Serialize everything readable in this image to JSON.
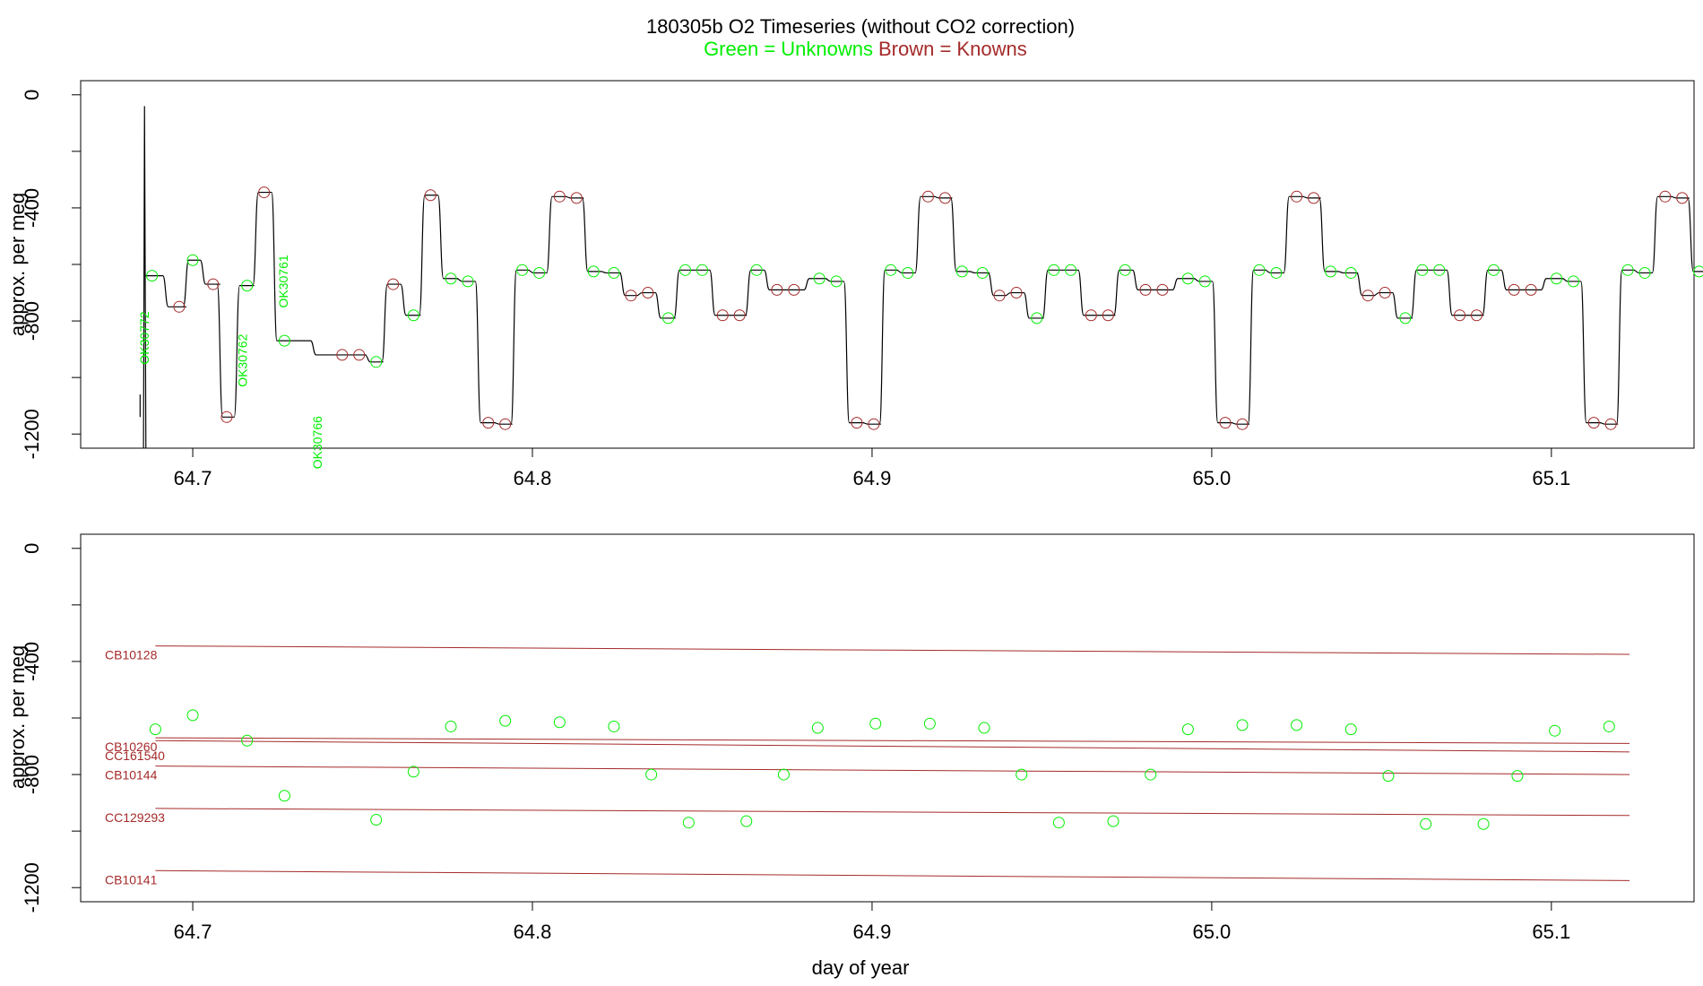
{
  "chart_data": [
    {
      "type": "line",
      "title": "180305b   O2 Timeseries (without CO2 correction)",
      "subtitle_unknowns": "Green = Unknowns",
      "subtitle_knowns": "Brown = Knowns",
      "xlabel": "",
      "ylabel": "approx. per meg",
      "xlim": [
        64.667,
        65.142
      ],
      "ylim": [
        -1250,
        50
      ],
      "xticks": [
        64.7,
        64.8,
        64.9,
        65.0,
        65.1
      ],
      "xtick_labels": [
        "64.7",
        "64.8",
        "64.9",
        "65.0",
        "65.1"
      ],
      "yticks": [
        0,
        -400,
        -800,
        -1200
      ],
      "ytick_labels": [
        "0",
        "-400",
        "-800",
        "-1200"
      ],
      "colors": {
        "unknown": "#00ee00",
        "known": "#a52a2a",
        "trace": "#000000"
      },
      "cycle": {
        "period": 0.1085,
        "levels": [
          {
            "dt": 0.0,
            "y": -650,
            "type": "unknown"
          },
          {
            "dt": 0.005,
            "y": -660,
            "type": "unknown"
          },
          {
            "dt": 0.011,
            "y": -1160,
            "type": "known"
          },
          {
            "dt": 0.016,
            "y": -1165,
            "type": "known"
          },
          {
            "dt": 0.021,
            "y": -620,
            "type": "unknown"
          },
          {
            "dt": 0.026,
            "y": -630,
            "type": "unknown"
          },
          {
            "dt": 0.032,
            "y": -360,
            "type": "known"
          },
          {
            "dt": 0.037,
            "y": -365,
            "type": "known"
          },
          {
            "dt": 0.042,
            "y": -625,
            "type": "unknown"
          },
          {
            "dt": 0.048,
            "y": -630,
            "type": "unknown"
          },
          {
            "dt": 0.053,
            "y": -710,
            "type": "known"
          },
          {
            "dt": 0.058,
            "y": -700,
            "type": "known"
          },
          {
            "dt": 0.064,
            "y": -790,
            "type": "unknown"
          },
          {
            "dt": 0.069,
            "y": -620,
            "type": "unknown"
          },
          {
            "dt": 0.074,
            "y": -620,
            "type": "unknown"
          },
          {
            "dt": 0.08,
            "y": -780,
            "type": "known"
          },
          {
            "dt": 0.085,
            "y": -780,
            "type": "known"
          },
          {
            "dt": 0.09,
            "y": -620,
            "type": "unknown"
          },
          {
            "dt": 0.096,
            "y": -690,
            "type": "known"
          },
          {
            "dt": 0.101,
            "y": -690,
            "type": "known"
          }
        ],
        "first_start": 64.776,
        "count": 4
      },
      "startup_unknown_labels": [
        {
          "text": "OK30772",
          "x": 64.687,
          "y": -860
        },
        {
          "text": "OK30762",
          "x": 64.716,
          "y": -940
        },
        {
          "text": "OK30761",
          "x": 64.728,
          "y": -660
        },
        {
          "text": "OK30766",
          "x": 64.738,
          "y": -1230
        }
      ],
      "startup_points": [
        {
          "x": 64.688,
          "y": -640,
          "type": "unknown"
        },
        {
          "x": 64.696,
          "y": -750,
          "type": "known"
        },
        {
          "x": 64.7,
          "y": -585,
          "type": "unknown"
        },
        {
          "x": 64.706,
          "y": -670,
          "type": "known"
        },
        {
          "x": 64.71,
          "y": -1140,
          "type": "known"
        },
        {
          "x": 64.716,
          "y": -675,
          "type": "unknown"
        },
        {
          "x": 64.721,
          "y": -345,
          "type": "known"
        },
        {
          "x": 64.727,
          "y": -870,
          "type": "unknown"
        },
        {
          "x": 64.744,
          "y": -920,
          "type": "known"
        },
        {
          "x": 64.749,
          "y": -920,
          "type": "known"
        },
        {
          "x": 64.754,
          "y": -945,
          "type": "unknown"
        },
        {
          "x": 64.759,
          "y": -670,
          "type": "known"
        },
        {
          "x": 64.765,
          "y": -780,
          "type": "unknown"
        },
        {
          "x": 64.77,
          "y": -355,
          "type": "known"
        }
      ]
    },
    {
      "type": "scatter",
      "xlabel": "day of year",
      "ylabel": "approx. per meg",
      "xlim": [
        64.667,
        65.142
      ],
      "ylim": [
        -1250,
        50
      ],
      "xticks": [
        64.7,
        64.8,
        64.9,
        65.0,
        65.1
      ],
      "xtick_labels": [
        "64.7",
        "64.8",
        "64.9",
        "65.0",
        "65.1"
      ],
      "yticks": [
        0,
        -400,
        -800,
        -1200
      ],
      "ytick_labels": [
        "0",
        "-400",
        "-800",
        "-1200"
      ],
      "standards": [
        {
          "name": "CB10128",
          "x": [
            64.689,
            65.123
          ],
          "y": [
            -345,
            -375
          ]
        },
        {
          "name": "CB10260",
          "x": [
            64.689,
            65.123
          ],
          "y": [
            -670,
            -690
          ]
        },
        {
          "name": "CC161540",
          "x": [
            64.689,
            65.123
          ],
          "y": [
            -680,
            -720
          ]
        },
        {
          "name": "CB10144",
          "x": [
            64.689,
            65.123
          ],
          "y": [
            -770,
            -800
          ]
        },
        {
          "name": "CC129293",
          "x": [
            64.689,
            65.123
          ],
          "y": [
            -920,
            -945
          ]
        },
        {
          "name": "CB10141",
          "x": [
            64.689,
            65.123
          ],
          "y": [
            -1140,
            -1175
          ]
        }
      ],
      "unknowns": {
        "x": [
          64.689,
          64.7,
          64.716,
          64.727,
          64.754,
          64.765,
          64.776,
          64.792,
          64.808,
          64.824,
          64.835,
          64.846,
          64.863,
          64.874,
          64.884,
          64.901,
          64.917,
          64.933,
          64.944,
          64.955,
          64.971,
          64.982,
          64.993,
          65.009,
          65.025,
          65.041,
          65.052,
          65.063,
          65.08,
          65.09,
          65.101,
          65.117
        ],
        "y": [
          -640,
          -590,
          -680,
          -875,
          -960,
          -790,
          -630,
          -610,
          -615,
          -630,
          -800,
          -970,
          -965,
          -800,
          -635,
          -620,
          -620,
          -635,
          -800,
          -970,
          -965,
          -800,
          -640,
          -625,
          -625,
          -640,
          -805,
          -975,
          -975,
          -805,
          -645,
          -630
        ]
      }
    }
  ]
}
